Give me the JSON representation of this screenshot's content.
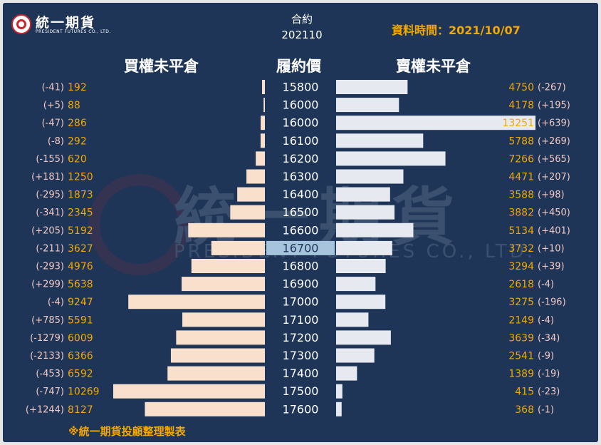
{
  "header": {
    "logo_name": "統一期貨",
    "logo_sub": "PRESIDENT FUTURES CO., LTD.",
    "contract_label": "合約",
    "contract_value": "202110",
    "data_time": "資料時間：2021/10/07"
  },
  "columns": {
    "call": "買權未平倉",
    "strike": "履約價",
    "put": "賣權未平倉"
  },
  "watermark": {
    "text": "統一期貨",
    "sub": "PRESIDENT FUTURES CO., LTD."
  },
  "footnote": "※統一期貨投顧整理製表",
  "colors": {
    "background": "#1e3558",
    "call_bar": "#f8e0cc",
    "put_bar": "#e6e9ef",
    "value_text": "#f2a800",
    "change_text": "#f1c7c0",
    "highlight_strike": "#a6c5dd"
  },
  "chart_data": {
    "type": "bar",
    "strikes": [
      "15800",
      "16000",
      "16000",
      "16100",
      "16200",
      "16300",
      "16400",
      "16500",
      "16600",
      "16700",
      "16800",
      "16900",
      "17000",
      "17100",
      "17200",
      "17300",
      "17400",
      "17500",
      "17600"
    ],
    "highlight_strike": "16700",
    "series": [
      {
        "name": "買權未平倉",
        "values": [
          192,
          88,
          286,
          292,
          620,
          1250,
          1873,
          2345,
          5192,
          3627,
          4976,
          5638,
          9247,
          5591,
          6009,
          6366,
          6592,
          10269,
          8127
        ],
        "changes": [
          "(-41)",
          "(+5)",
          "(-47)",
          "(-8)",
          "(-155)",
          "(+181)",
          "(-295)",
          "(-341)",
          "(+205)",
          "(-211)",
          "(-293)",
          "(+299)",
          "(-4)",
          "(+785)",
          "(-1279)",
          "(-2133)",
          "(-453)",
          "(-747)",
          "(+1244)"
        ]
      },
      {
        "name": "賣權未平倉",
        "values": [
          4750,
          4178,
          13251,
          5788,
          7266,
          4471,
          3588,
          3882,
          5134,
          3732,
          3294,
          2618,
          3275,
          2149,
          3639,
          2541,
          1389,
          415,
          368
        ],
        "changes": [
          "(-267)",
          "(+195)",
          "(+639)",
          "(+269)",
          "(+565)",
          "(+207)",
          "(+98)",
          "(+450)",
          "(+401)",
          "(+10)",
          "(+39)",
          "(-4)",
          "(-196)",
          "(-4)",
          "(-34)",
          "(-9)",
          "(-19)",
          "(-23)",
          "(-1)"
        ]
      }
    ]
  }
}
